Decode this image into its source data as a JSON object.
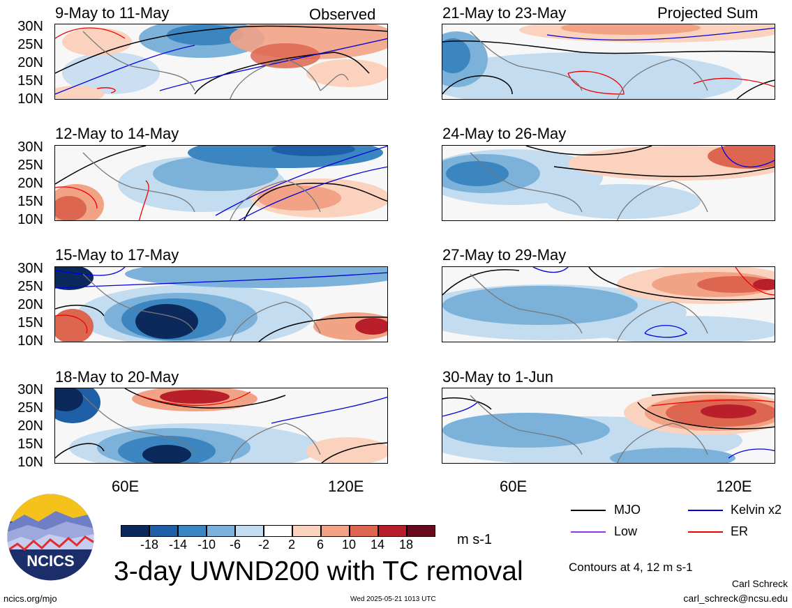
{
  "header": {
    "label_observed": "Observed",
    "label_projected": "Projected Sum"
  },
  "panels_left": [
    {
      "title": "9-May to 11-May"
    },
    {
      "title": "12-May to 14-May"
    },
    {
      "title": "15-May to 17-May"
    },
    {
      "title": "18-May to 20-May"
    }
  ],
  "panels_right": [
    {
      "title": "21-May to 23-May"
    },
    {
      "title": "24-May to 26-May"
    },
    {
      "title": "27-May to 29-May"
    },
    {
      "title": "30-May to 1-Jun"
    }
  ],
  "axes": {
    "lat_ticks": [
      "30N",
      "25N",
      "20N",
      "15N",
      "10N"
    ],
    "lon_ticks": [
      "60E",
      "120E"
    ]
  },
  "colorbar": {
    "labels": [
      "-18",
      "-14",
      "-10",
      "-6",
      "-2",
      "2",
      "6",
      "10",
      "14",
      "18"
    ],
    "colors": [
      "#0b2a5b",
      "#1f5fa8",
      "#3b86c0",
      "#7cb2d9",
      "#c4dcef",
      "#ffffff",
      "#fbd2bd",
      "#f2a285",
      "#dd6650",
      "#b81f2b",
      "#670a1d"
    ],
    "units": "m s-1"
  },
  "legend": {
    "mjo": "MJO",
    "kelvin": "Kelvin x2",
    "low": "Low",
    "er": "ER",
    "mjo_color": "#000000",
    "kelvin_color": "#0000dd",
    "low_color": "#9933ee",
    "er_color": "#ee0000",
    "contours_note": "Contours at 4, 12 m s-1",
    "author": "Carl Schreck",
    "email": "carl_schreck@ncsu.edu"
  },
  "footer": {
    "main_title": "3-day UWND200 with TC removal",
    "website": "ncics.org/mjo",
    "timestamp": "Wed 2025-05-21 1013 UTC",
    "logo_text": "NCICS"
  }
}
